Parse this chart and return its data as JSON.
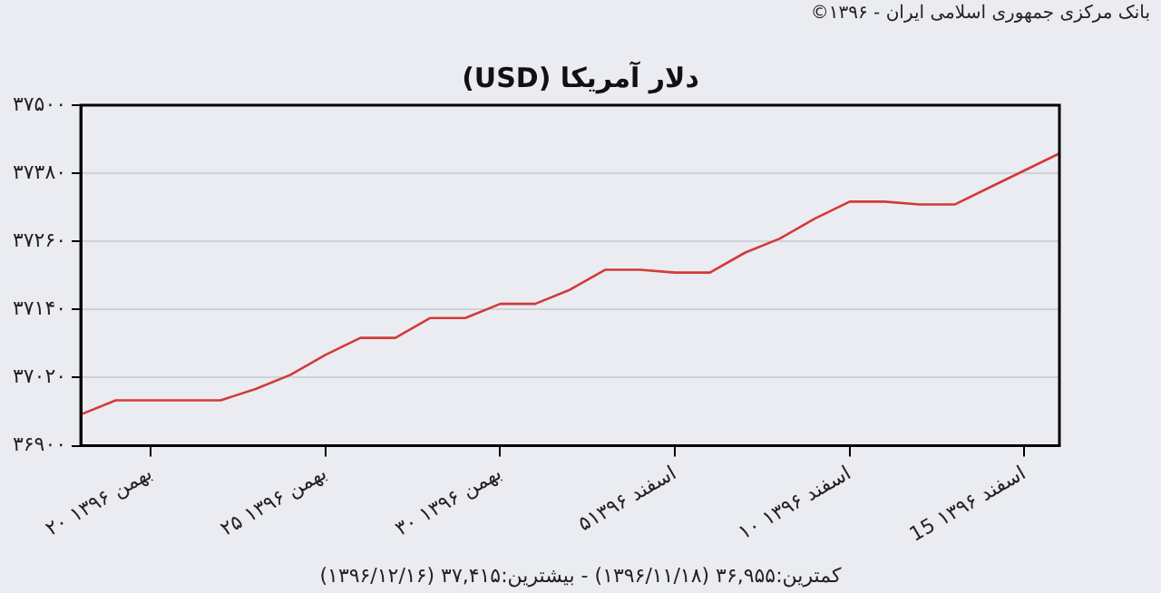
{
  "chart_data": {
    "type": "line",
    "title": "دلار آمریکا (USD)",
    "annotations": [
      "بانک مرکزی جمهوری اسلامی ایران - ۱۳۹۶©",
      "کمترین:۳۶,۹۵۵ (۱۳۹۶/۱۱/۱۸) - بیشترین:۳۷,۴۱۵ (۱۳۹۶/۱۲/۱۶)"
    ],
    "categories": [
      null,
      null,
      "۲۰ بهمن ۱۳۹۶",
      null,
      null,
      null,
      null,
      "۲۵ بهمن ۱۳۹۶",
      null,
      null,
      null,
      null,
      "۳۰ بهمن ۱۳۹۶",
      null,
      null,
      null,
      null,
      "۵اسفند ۱۳۹۶",
      null,
      null,
      null,
      null,
      "۱۰ اسفند ۱۳۹۶",
      null,
      null,
      null,
      null,
      "15 اسفند ۱۳۹۶",
      null
    ],
    "series": [
      {
        "color": "#d23a3a",
        "values": [
          36955,
          36980,
          36980,
          36980,
          36980,
          37000,
          37025,
          37060,
          37090,
          37090,
          37125,
          37125,
          37150,
          37150,
          37175,
          37210,
          37210,
          37205,
          37205,
          37240,
          37265,
          37300,
          37330,
          37330,
          37325,
          37325,
          37355,
          37385,
          37415
        ]
      }
    ],
    "ylim": [
      36900,
      37500
    ],
    "yticks": [
      {
        "value": 36900,
        "label": "۳۶۹۰۰"
      },
      {
        "value": 37020,
        "label": "۳۷۰۲۰"
      },
      {
        "value": 37140,
        "label": "۳۷۱۴۰"
      },
      {
        "value": 37260,
        "label": "۳۷۲۶۰"
      },
      {
        "value": 37380,
        "label": "۳۷۳۸۰"
      },
      {
        "value": 37500,
        "label": "۳۷۵۰۰"
      }
    ],
    "grid": "y",
    "legend": false,
    "marker": "none",
    "line_style": "solid"
  }
}
